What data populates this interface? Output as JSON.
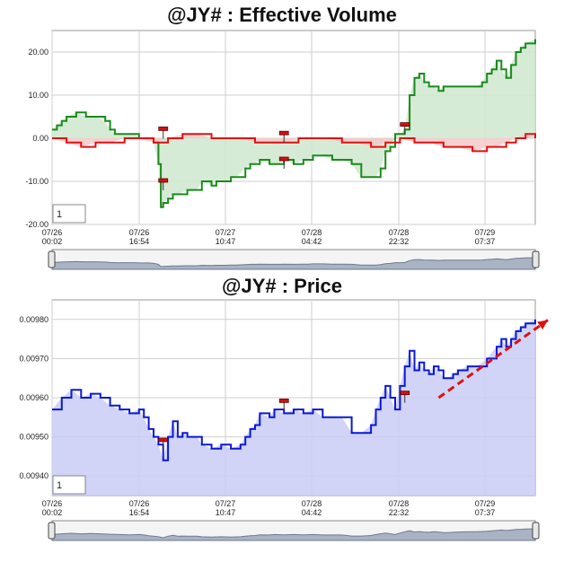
{
  "chart_data": [
    {
      "type": "line",
      "title": "@JY# : Effective Volume",
      "ylim": [
        -20,
        25
      ],
      "y_ticks": [
        "20.00",
        "10.00",
        "0.00",
        "-10.00",
        "-20.00"
      ],
      "x_ticks": [
        {
          "date": "07/26",
          "time": "00:02"
        },
        {
          "date": "07/26",
          "time": "16:54"
        },
        {
          "date": "07/27",
          "time": "10:47"
        },
        {
          "date": "07/28",
          "time": "04:42"
        },
        {
          "date": "07/28",
          "time": "22:32"
        },
        {
          "date": "07/29",
          "time": "07:37"
        }
      ],
      "period_box": "1",
      "series": [
        {
          "color": "#1a8a1a",
          "fill": "#cfe8cf",
          "points": [
            [
              0,
              2
            ],
            [
              1,
              3
            ],
            [
              2,
              4
            ],
            [
              3,
              5
            ],
            [
              5,
              6
            ],
            [
              7,
              5
            ],
            [
              9,
              5
            ],
            [
              11,
              4
            ],
            [
              12,
              2
            ],
            [
              13,
              1
            ],
            [
              15,
              1
            ],
            [
              17,
              1
            ],
            [
              18,
              0
            ],
            [
              20,
              0
            ],
            [
              21,
              -1
            ],
            [
              22,
              -6
            ],
            [
              22.5,
              -16
            ],
            [
              23,
              -15
            ],
            [
              24,
              -14
            ],
            [
              25,
              -13
            ],
            [
              26,
              -13
            ],
            [
              28,
              -12
            ],
            [
              30,
              -12
            ],
            [
              31,
              -10
            ],
            [
              33,
              -11
            ],
            [
              34,
              -10
            ],
            [
              36,
              -10
            ],
            [
              37,
              -9
            ],
            [
              38,
              -9
            ],
            [
              40,
              -7
            ],
            [
              41,
              -6
            ],
            [
              42,
              -6
            ],
            [
              43,
              -5
            ],
            [
              45,
              -6
            ],
            [
              46,
              -6
            ],
            [
              47,
              -6
            ],
            [
              48,
              -5
            ],
            [
              50,
              -6
            ],
            [
              52,
              -5
            ],
            [
              53,
              -5
            ],
            [
              54,
              -4
            ],
            [
              56,
              -4
            ],
            [
              58,
              -5
            ],
            [
              60,
              -5
            ],
            [
              62,
              -6
            ],
            [
              64,
              -9
            ],
            [
              65,
              -9
            ],
            [
              67,
              -9
            ],
            [
              68,
              -7
            ],
            [
              69,
              -3
            ],
            [
              70,
              -2
            ],
            [
              71,
              1
            ],
            [
              72,
              1
            ],
            [
              73,
              2
            ],
            [
              74,
              10
            ],
            [
              75,
              14
            ],
            [
              76,
              15
            ],
            [
              77,
              13
            ],
            [
              78,
              12
            ],
            [
              79,
              12
            ],
            [
              80,
              11
            ],
            [
              81,
              12
            ],
            [
              82,
              12
            ],
            [
              84,
              12
            ],
            [
              86,
              12
            ],
            [
              88,
              12
            ],
            [
              89,
              13
            ],
            [
              90,
              15
            ],
            [
              91,
              16
            ],
            [
              92,
              18
            ],
            [
              93,
              16
            ],
            [
              94,
              14
            ],
            [
              95,
              17
            ],
            [
              96,
              20
            ],
            [
              97,
              21
            ],
            [
              98,
              22
            ],
            [
              100,
              23
            ]
          ]
        },
        {
          "color": "#e01010",
          "fill": "#f3c9c9",
          "points": [
            [
              0,
              0
            ],
            [
              3,
              -1
            ],
            [
              6,
              -2
            ],
            [
              9,
              -1
            ],
            [
              12,
              -1
            ],
            [
              15,
              0
            ],
            [
              18,
              0
            ],
            [
              21,
              -1
            ],
            [
              24,
              0
            ],
            [
              27,
              1
            ],
            [
              30,
              1
            ],
            [
              33,
              0
            ],
            [
              36,
              0
            ],
            [
              39,
              0
            ],
            [
              42,
              -1
            ],
            [
              45,
              -1
            ],
            [
              48,
              -1
            ],
            [
              51,
              0
            ],
            [
              54,
              0
            ],
            [
              57,
              0
            ],
            [
              60,
              -1
            ],
            [
              63,
              -1
            ],
            [
              66,
              -2
            ],
            [
              69,
              -1
            ],
            [
              72,
              0
            ],
            [
              75,
              -1
            ],
            [
              78,
              -1
            ],
            [
              81,
              -2
            ],
            [
              84,
              -2
            ],
            [
              87,
              -3
            ],
            [
              90,
              -2
            ],
            [
              92,
              -2
            ],
            [
              94,
              -1
            ],
            [
              96,
              0
            ],
            [
              98,
              1
            ],
            [
              100,
              0
            ]
          ]
        }
      ],
      "markers": [
        [
          23,
          2
        ],
        [
          23,
          -10
        ],
        [
          48,
          1
        ],
        [
          48,
          -5
        ],
        [
          73,
          3
        ]
      ]
    },
    {
      "type": "area",
      "title": "@JY# : Price",
      "ylim": [
        0.00935,
        0.00985
      ],
      "y_ticks": [
        "0.00980",
        "0.00970",
        "0.00960",
        "0.00950",
        "0.00940"
      ],
      "x_ticks": [
        {
          "date": "07/26",
          "time": "00:02"
        },
        {
          "date": "07/26",
          "time": "16:54"
        },
        {
          "date": "07/27",
          "time": "10:47"
        },
        {
          "date": "07/28",
          "time": "04:42"
        },
        {
          "date": "07/28",
          "time": "22:32"
        },
        {
          "date": "07/29",
          "time": "07:37"
        }
      ],
      "period_box": "1",
      "series": [
        {
          "color": "#0a18d8",
          "fill": "#c9ccf6",
          "points": [
            [
              0,
              0.00957
            ],
            [
              2,
              0.0096
            ],
            [
              4,
              0.00962
            ],
            [
              6,
              0.0096
            ],
            [
              8,
              0.00961
            ],
            [
              10,
              0.0096
            ],
            [
              12,
              0.00958
            ],
            [
              14,
              0.00957
            ],
            [
              16,
              0.00956
            ],
            [
              18,
              0.00957
            ],
            [
              19,
              0.00955
            ],
            [
              20,
              0.00952
            ],
            [
              21,
              0.0095
            ],
            [
              22,
              0.00948
            ],
            [
              23,
              0.00944
            ],
            [
              24,
              0.0095
            ],
            [
              25,
              0.00954
            ],
            [
              26,
              0.0095
            ],
            [
              27,
              0.00951
            ],
            [
              28,
              0.0095
            ],
            [
              30,
              0.0095
            ],
            [
              31,
              0.00948
            ],
            [
              33,
              0.00947
            ],
            [
              35,
              0.00948
            ],
            [
              37,
              0.00947
            ],
            [
              39,
              0.00948
            ],
            [
              40,
              0.0095
            ],
            [
              41,
              0.00952
            ],
            [
              42,
              0.00953
            ],
            [
              43,
              0.00956
            ],
            [
              45,
              0.00955
            ],
            [
              46,
              0.00957
            ],
            [
              48,
              0.00956
            ],
            [
              50,
              0.00957
            ],
            [
              52,
              0.00956
            ],
            [
              54,
              0.00957
            ],
            [
              56,
              0.00955
            ],
            [
              58,
              0.00955
            ],
            [
              60,
              0.00955
            ],
            [
              62,
              0.00951
            ],
            [
              64,
              0.00951
            ],
            [
              66,
              0.00953
            ],
            [
              67,
              0.00957
            ],
            [
              68,
              0.0096
            ],
            [
              69,
              0.00963
            ],
            [
              70,
              0.0096
            ],
            [
              71,
              0.00957
            ],
            [
              72,
              0.00963
            ],
            [
              73,
              0.00968
            ],
            [
              74,
              0.00972
            ],
            [
              75,
              0.00967
            ],
            [
              76,
              0.00969
            ],
            [
              77,
              0.00967
            ],
            [
              78,
              0.00966
            ],
            [
              79,
              0.00968
            ],
            [
              80,
              0.00967
            ],
            [
              81,
              0.00965
            ],
            [
              82,
              0.00965
            ],
            [
              83,
              0.00966
            ],
            [
              84,
              0.00967
            ],
            [
              86,
              0.00968
            ],
            [
              88,
              0.00968
            ],
            [
              90,
              0.0097
            ],
            [
              92,
              0.00973
            ],
            [
              93,
              0.00975
            ],
            [
              94,
              0.00973
            ],
            [
              95,
              0.00975
            ],
            [
              96,
              0.00977
            ],
            [
              97,
              0.00978
            ],
            [
              98,
              0.00979
            ],
            [
              100,
              0.0098
            ]
          ]
        }
      ],
      "markers": [
        [
          23,
          0.00949
        ],
        [
          48,
          0.00959
        ],
        [
          73,
          0.00961
        ]
      ],
      "trend_arrow": {
        "color": "#e01010",
        "from": [
          80,
          0.0096
        ],
        "to": [
          100,
          0.00978
        ]
      }
    }
  ]
}
